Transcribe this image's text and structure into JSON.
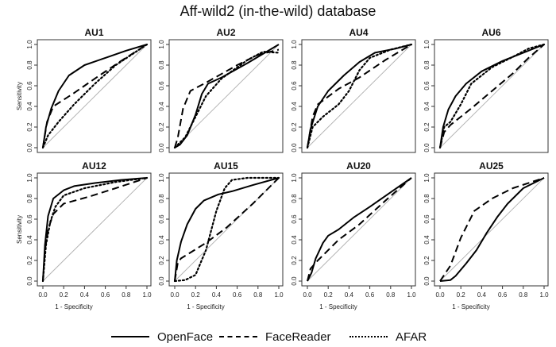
{
  "figure": {
    "title": "Aff-wild2 (in-the-wild) database"
  },
  "legend": {
    "items": [
      {
        "label": "OpenFace",
        "style": "solid"
      },
      {
        "label": "FaceReader",
        "style": "dashed"
      },
      {
        "label": "AFAR",
        "style": "dotted"
      }
    ]
  },
  "colors": {
    "curve": "#000000",
    "diagonal": "#b0b0b0",
    "frame": "#333333"
  },
  "chart_data": [
    {
      "type": "line",
      "title": "AU1",
      "xlabel": "",
      "ylabel": "Sensitivity",
      "xlim": [
        0,
        1
      ],
      "ylim": [
        0,
        1
      ],
      "yticks": [
        "0.0",
        "0.2",
        "0.4",
        "0.6",
        "0.8",
        "1.0"
      ],
      "xticks": [],
      "grid": false,
      "diagonal": true,
      "series": [
        {
          "name": "OpenFace",
          "style": "solid",
          "points": [
            [
              0,
              0
            ],
            [
              0.03,
              0.2
            ],
            [
              0.08,
              0.38
            ],
            [
              0.15,
              0.55
            ],
            [
              0.25,
              0.7
            ],
            [
              0.4,
              0.8
            ],
            [
              0.6,
              0.87
            ],
            [
              0.8,
              0.94
            ],
            [
              1,
              1
            ]
          ]
        },
        {
          "name": "FaceReader",
          "style": "dashed",
          "points": [
            [
              0,
              0
            ],
            [
              0.04,
              0.25
            ],
            [
              0.1,
              0.4
            ],
            [
              0.3,
              0.53
            ],
            [
              0.5,
              0.67
            ],
            [
              0.75,
              0.84
            ],
            [
              1,
              1
            ]
          ]
        },
        {
          "name": "AFAR",
          "style": "dotted",
          "points": [
            [
              0,
              0
            ],
            [
              0.05,
              0.12
            ],
            [
              0.15,
              0.25
            ],
            [
              0.3,
              0.42
            ],
            [
              0.5,
              0.62
            ],
            [
              0.7,
              0.8
            ],
            [
              1,
              1
            ]
          ]
        }
      ]
    },
    {
      "type": "line",
      "title": "AU2",
      "xlabel": "",
      "ylabel": "",
      "xlim": [
        0,
        1
      ],
      "ylim": [
        0,
        1
      ],
      "yticks": [
        "0.0",
        "0.2",
        "0.4",
        "0.6",
        "0.8",
        "1.0"
      ],
      "xticks": [],
      "grid": false,
      "diagonal": true,
      "series": [
        {
          "name": "OpenFace",
          "style": "solid",
          "points": [
            [
              0,
              0
            ],
            [
              0.05,
              0.03
            ],
            [
              0.12,
              0.12
            ],
            [
              0.2,
              0.32
            ],
            [
              0.26,
              0.52
            ],
            [
              0.32,
              0.62
            ],
            [
              0.45,
              0.68
            ],
            [
              0.7,
              0.82
            ],
            [
              1,
              1
            ]
          ]
        },
        {
          "name": "FaceReader",
          "style": "dashed",
          "points": [
            [
              0,
              0
            ],
            [
              0.03,
              0.1
            ],
            [
              0.08,
              0.38
            ],
            [
              0.15,
              0.55
            ],
            [
              0.3,
              0.63
            ],
            [
              0.6,
              0.8
            ],
            [
              0.8,
              0.9
            ],
            [
              1,
              0.95
            ]
          ]
        },
        {
          "name": "AFAR",
          "style": "dotted",
          "points": [
            [
              0,
              0
            ],
            [
              0.1,
              0.1
            ],
            [
              0.2,
              0.3
            ],
            [
              0.3,
              0.5
            ],
            [
              0.45,
              0.67
            ],
            [
              0.7,
              0.85
            ],
            [
              0.85,
              0.93
            ],
            [
              1,
              0.92
            ]
          ]
        }
      ]
    },
    {
      "type": "line",
      "title": "AU4",
      "xlabel": "",
      "ylabel": "",
      "xlim": [
        0,
        1
      ],
      "ylim": [
        0,
        1
      ],
      "yticks": [
        "0.0",
        "0.2",
        "0.4",
        "0.6",
        "0.8",
        "1.0"
      ],
      "xticks": [],
      "grid": false,
      "diagonal": true,
      "series": [
        {
          "name": "OpenFace",
          "style": "solid",
          "points": [
            [
              0,
              0
            ],
            [
              0.03,
              0.18
            ],
            [
              0.1,
              0.4
            ],
            [
              0.2,
              0.55
            ],
            [
              0.35,
              0.7
            ],
            [
              0.5,
              0.83
            ],
            [
              0.65,
              0.92
            ],
            [
              0.85,
              0.96
            ],
            [
              1,
              1
            ]
          ]
        },
        {
          "name": "FaceReader",
          "style": "dashed",
          "points": [
            [
              0,
              0
            ],
            [
              0.05,
              0.3
            ],
            [
              0.1,
              0.42
            ],
            [
              0.3,
              0.57
            ],
            [
              0.5,
              0.68
            ],
            [
              0.75,
              0.85
            ],
            [
              1,
              1
            ]
          ]
        },
        {
          "name": "AFAR",
          "style": "dotted",
          "points": [
            [
              0,
              0
            ],
            [
              0.05,
              0.2
            ],
            [
              0.15,
              0.3
            ],
            [
              0.3,
              0.42
            ],
            [
              0.4,
              0.55
            ],
            [
              0.5,
              0.75
            ],
            [
              0.6,
              0.87
            ],
            [
              0.8,
              0.95
            ],
            [
              1,
              1
            ]
          ]
        }
      ]
    },
    {
      "type": "line",
      "title": "AU6",
      "xlabel": "",
      "ylabel": "",
      "xlim": [
        0,
        1
      ],
      "ylim": [
        0,
        1
      ],
      "yticks": [
        "0.0",
        "0.2",
        "0.4",
        "0.6",
        "0.8",
        "1.0"
      ],
      "xticks": [],
      "grid": false,
      "diagonal": true,
      "series": [
        {
          "name": "OpenFace",
          "style": "solid",
          "points": [
            [
              0,
              0
            ],
            [
              0.03,
              0.2
            ],
            [
              0.08,
              0.37
            ],
            [
              0.15,
              0.5
            ],
            [
              0.25,
              0.62
            ],
            [
              0.4,
              0.74
            ],
            [
              0.6,
              0.84
            ],
            [
              0.8,
              0.92
            ],
            [
              1,
              1
            ]
          ]
        },
        {
          "name": "FaceReader",
          "style": "dashed",
          "points": [
            [
              0,
              0
            ],
            [
              0.04,
              0.15
            ],
            [
              0.1,
              0.22
            ],
            [
              0.3,
              0.38
            ],
            [
              0.5,
              0.55
            ],
            [
              0.7,
              0.72
            ],
            [
              0.85,
              0.87
            ],
            [
              1,
              1
            ]
          ]
        },
        {
          "name": "AFAR",
          "style": "dotted",
          "points": [
            [
              0,
              0
            ],
            [
              0.04,
              0.2
            ],
            [
              0.1,
              0.25
            ],
            [
              0.2,
              0.42
            ],
            [
              0.3,
              0.62
            ],
            [
              0.5,
              0.78
            ],
            [
              0.7,
              0.88
            ],
            [
              0.85,
              0.96
            ],
            [
              1,
              1
            ]
          ]
        }
      ]
    },
    {
      "type": "line",
      "title": "AU12",
      "xlabel": "1 - Specificity",
      "ylabel": "Sensitivity",
      "xlim": [
        0,
        1
      ],
      "ylim": [
        0,
        1
      ],
      "yticks": [
        "0.0",
        "0.2",
        "0.4",
        "0.6",
        "0.8",
        "1.0"
      ],
      "xticks": [
        "0.0",
        "0.2",
        "0.4",
        "0.6",
        "0.8",
        "1.0"
      ],
      "grid": false,
      "diagonal": true,
      "series": [
        {
          "name": "OpenFace",
          "style": "solid",
          "points": [
            [
              0,
              0
            ],
            [
              0.02,
              0.35
            ],
            [
              0.05,
              0.63
            ],
            [
              0.1,
              0.8
            ],
            [
              0.2,
              0.88
            ],
            [
              0.3,
              0.92
            ],
            [
              0.5,
              0.95
            ],
            [
              0.75,
              0.98
            ],
            [
              1,
              1
            ]
          ]
        },
        {
          "name": "FaceReader",
          "style": "dashed",
          "points": [
            [
              0,
              0
            ],
            [
              0.02,
              0.3
            ],
            [
              0.05,
              0.5
            ],
            [
              0.1,
              0.65
            ],
            [
              0.2,
              0.75
            ],
            [
              0.45,
              0.82
            ],
            [
              0.7,
              0.9
            ],
            [
              1,
              1
            ]
          ]
        },
        {
          "name": "AFAR",
          "style": "dotted",
          "points": [
            [
              0,
              0
            ],
            [
              0.03,
              0.35
            ],
            [
              0.07,
              0.57
            ],
            [
              0.12,
              0.72
            ],
            [
              0.2,
              0.83
            ],
            [
              0.4,
              0.9
            ],
            [
              0.7,
              0.96
            ],
            [
              1,
              1
            ]
          ]
        }
      ]
    },
    {
      "type": "line",
      "title": "AU15",
      "xlabel": "1 - Specificity",
      "ylabel": "",
      "xlim": [
        0,
        1
      ],
      "ylim": [
        0,
        1
      ],
      "yticks": [
        "0.0",
        "0.2",
        "0.4",
        "0.6",
        "0.8",
        "1.0"
      ],
      "xticks": [
        "0.0",
        "0.2",
        "0.4",
        "0.6",
        "0.8",
        "1.0"
      ],
      "grid": false,
      "diagonal": true,
      "series": [
        {
          "name": "OpenFace",
          "style": "solid",
          "points": [
            [
              0,
              0
            ],
            [
              0.02,
              0.2
            ],
            [
              0.06,
              0.38
            ],
            [
              0.12,
              0.55
            ],
            [
              0.2,
              0.7
            ],
            [
              0.28,
              0.78
            ],
            [
              0.42,
              0.84
            ],
            [
              0.55,
              0.87
            ],
            [
              0.75,
              0.93
            ],
            [
              1,
              1
            ]
          ]
        },
        {
          "name": "FaceReader",
          "style": "dashed",
          "points": [
            [
              0,
              0
            ],
            [
              0.03,
              0.18
            ],
            [
              0.06,
              0.22
            ],
            [
              0.3,
              0.37
            ],
            [
              0.5,
              0.52
            ],
            [
              0.75,
              0.75
            ],
            [
              1,
              1
            ]
          ]
        },
        {
          "name": "AFAR",
          "style": "dotted",
          "points": [
            [
              0,
              0
            ],
            [
              0.1,
              0.01
            ],
            [
              0.2,
              0.06
            ],
            [
              0.3,
              0.3
            ],
            [
              0.4,
              0.68
            ],
            [
              0.48,
              0.9
            ],
            [
              0.55,
              0.98
            ],
            [
              0.7,
              1
            ],
            [
              1,
              1
            ]
          ]
        }
      ]
    },
    {
      "type": "line",
      "title": "AU20",
      "xlabel": "1 - Specificity",
      "ylabel": "",
      "xlim": [
        0,
        1
      ],
      "ylim": [
        0,
        1
      ],
      "yticks": [
        "0.0",
        "0.2",
        "0.4",
        "0.6",
        "0.8",
        "1.0"
      ],
      "xticks": [
        "0.0",
        "0.2",
        "0.4",
        "0.6",
        "0.8",
        "1.0"
      ],
      "grid": false,
      "diagonal": true,
      "series": [
        {
          "name": "OpenFace",
          "style": "solid",
          "points": [
            [
              0,
              0
            ],
            [
              0.04,
              0.08
            ],
            [
              0.08,
              0.22
            ],
            [
              0.15,
              0.37
            ],
            [
              0.2,
              0.44
            ],
            [
              0.3,
              0.5
            ],
            [
              0.45,
              0.62
            ],
            [
              0.6,
              0.72
            ],
            [
              0.8,
              0.86
            ],
            [
              1,
              1
            ]
          ]
        },
        {
          "name": "FaceReader",
          "style": "dashed",
          "points": [
            [
              0,
              0
            ],
            [
              0.03,
              0.12
            ],
            [
              0.1,
              0.2
            ],
            [
              0.3,
              0.4
            ],
            [
              0.5,
              0.55
            ],
            [
              0.75,
              0.78
            ],
            [
              1,
              1
            ]
          ]
        }
      ]
    },
    {
      "type": "line",
      "title": "AU25",
      "xlabel": "1 - Specificity",
      "ylabel": "",
      "xlim": [
        0,
        1
      ],
      "ylim": [
        0,
        1
      ],
      "yticks": [
        "0.0",
        "0.2",
        "0.4",
        "0.6",
        "0.8",
        "1.0"
      ],
      "xticks": [
        "0.0",
        "0.2",
        "0.4",
        "0.6",
        "0.8",
        "1.0"
      ],
      "grid": false,
      "diagonal": true,
      "series": [
        {
          "name": "OpenFace",
          "style": "solid",
          "points": [
            [
              0,
              0
            ],
            [
              0.1,
              0.01
            ],
            [
              0.15,
              0.05
            ],
            [
              0.25,
              0.17
            ],
            [
              0.35,
              0.3
            ],
            [
              0.45,
              0.47
            ],
            [
              0.55,
              0.62
            ],
            [
              0.65,
              0.75
            ],
            [
              0.8,
              0.9
            ],
            [
              1,
              1
            ]
          ]
        },
        {
          "name": "FaceReader",
          "style": "dashed",
          "points": [
            [
              0,
              0
            ],
            [
              0.1,
              0.15
            ],
            [
              0.2,
              0.42
            ],
            [
              0.33,
              0.68
            ],
            [
              0.5,
              0.8
            ],
            [
              0.7,
              0.9
            ],
            [
              1,
              1
            ]
          ]
        }
      ]
    }
  ]
}
